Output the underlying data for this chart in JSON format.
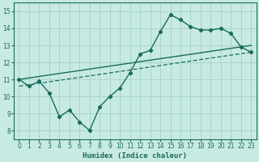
{
  "xlabel": "Humidex (Indice chaleur)",
  "background_color": "#c8eae4",
  "grid_color": "#a8d4cc",
  "line_color": "#1a6b5a",
  "xlim": [
    -0.5,
    23.5
  ],
  "ylim": [
    7.5,
    15.5
  ],
  "xticks": [
    0,
    1,
    2,
    3,
    4,
    5,
    6,
    7,
    8,
    9,
    10,
    11,
    12,
    13,
    14,
    15,
    16,
    17,
    18,
    19,
    20,
    21,
    22,
    23
  ],
  "yticks": [
    8,
    9,
    10,
    11,
    12,
    13,
    14,
    15
  ],
  "line1_x": [
    0,
    1,
    2,
    3,
    4,
    5,
    6,
    7,
    8,
    9,
    10,
    11,
    12,
    13,
    14,
    15,
    16,
    17,
    18,
    19,
    20,
    21,
    22,
    23
  ],
  "line1_y": [
    11.0,
    10.6,
    10.9,
    10.2,
    8.8,
    9.2,
    8.5,
    8.0,
    9.4,
    10.0,
    10.5,
    11.4,
    12.5,
    12.7,
    13.8,
    14.8,
    14.5,
    14.1,
    13.9,
    13.9,
    14.0,
    13.7,
    12.9,
    12.6
  ],
  "line2_x": [
    0,
    23
  ],
  "line2_y": [
    11.0,
    13.0
  ],
  "line3_x": [
    0,
    23
  ],
  "line3_y": [
    10.6,
    12.6
  ]
}
